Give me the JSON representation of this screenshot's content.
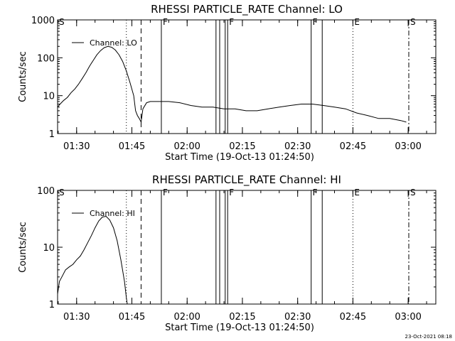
{
  "chart_data": [
    {
      "type": "line",
      "title": "RHESSI PARTICLE_RATE Channel: LO",
      "xlabel": "Start Time (19-Oct-13 01:24:50)",
      "ylabel": "Counts/sec",
      "y_scale": "log",
      "ylim": [
        1,
        1000
      ],
      "xlim": [
        "01:24:50",
        "03:07:30"
      ],
      "x_ticks": [
        "01:30",
        "01:45",
        "02:00",
        "02:15",
        "02:30",
        "02:45",
        "03:00"
      ],
      "y_ticks": [
        "1",
        "10",
        "100",
        "1000"
      ],
      "legend": "top-left",
      "series": [
        {
          "name": "Channel: LO",
          "points": [
            [
              "01:24:50",
              5
            ],
            [
              "01:25:30",
              6
            ],
            [
              "01:26:30",
              7.5
            ],
            [
              "01:27:30",
              9
            ],
            [
              "01:28:30",
              12
            ],
            [
              "01:29:30",
              15
            ],
            [
              "01:30:30",
              20
            ],
            [
              "01:31:30",
              28
            ],
            [
              "01:32:30",
              40
            ],
            [
              "01:33:30",
              60
            ],
            [
              "01:34:30",
              85
            ],
            [
              "01:35:30",
              120
            ],
            [
              "01:36:30",
              155
            ],
            [
              "01:37:30",
              185
            ],
            [
              "01:38:30",
              200
            ],
            [
              "01:39:30",
              190
            ],
            [
              "01:40:30",
              160
            ],
            [
              "01:41:30",
              120
            ],
            [
              "01:42:30",
              80
            ],
            [
              "01:43:30",
              45
            ],
            [
              "01:44:30",
              22
            ],
            [
              "01:45:30",
              10
            ],
            [
              "01:46:00",
              4
            ],
            [
              "01:46:30",
              3
            ],
            [
              "01:47:00",
              2.5
            ],
            [
              "01:47:30",
              2
            ],
            [
              "01:48:00",
              4.5
            ],
            [
              "01:49:00",
              6.5
            ],
            [
              "01:50:00",
              7
            ],
            [
              "01:52:00",
              7
            ],
            [
              "01:55:00",
              7
            ],
            [
              "01:58:00",
              6.5
            ],
            [
              "02:01:00",
              5.5
            ],
            [
              "02:04:00",
              5
            ],
            [
              "02:07:00",
              5
            ],
            [
              "02:10:00",
              4.5
            ],
            [
              "02:13:00",
              4.5
            ],
            [
              "02:16:00",
              4
            ],
            [
              "02:19:00",
              4
            ],
            [
              "02:22:00",
              4.5
            ],
            [
              "02:25:00",
              5
            ],
            [
              "02:28:00",
              5.5
            ],
            [
              "02:31:00",
              6
            ],
            [
              "02:34:00",
              6
            ],
            [
              "02:37:00",
              5.5
            ],
            [
              "02:40:00",
              5
            ],
            [
              "02:43:00",
              4.5
            ],
            [
              "02:46:00",
              3.5
            ],
            [
              "02:49:00",
              3
            ],
            [
              "02:52:00",
              2.5
            ],
            [
              "02:55:00",
              2.5
            ],
            [
              "02:58:00",
              2.2
            ],
            [
              "02:59:30",
              2
            ]
          ]
        }
      ],
      "markers": [
        {
          "label": "S",
          "time": "01:24:50",
          "style": "none"
        },
        {
          "label": "",
          "time": "01:43:30",
          "style": "dotted"
        },
        {
          "label": "",
          "time": "01:47:30",
          "style": "dashed"
        },
        {
          "label": "F",
          "time": "01:53:00",
          "style": "solid"
        },
        {
          "label": "",
          "time": "02:07:50",
          "style": "solid"
        },
        {
          "label": "",
          "time": "02:08:50",
          "style": "solid"
        },
        {
          "label": "",
          "time": "02:10:20",
          "style": "solid"
        },
        {
          "label": "F",
          "time": "02:11:00",
          "style": "solid"
        },
        {
          "label": "F",
          "time": "02:33:40",
          "style": "solid"
        },
        {
          "label": "",
          "time": "02:36:40",
          "style": "solid"
        },
        {
          "label": "E",
          "time": "02:45:00",
          "style": "dotted"
        },
        {
          "label": "S",
          "time": "03:00:10",
          "style": "dashdot"
        }
      ]
    },
    {
      "type": "line",
      "title": "RHESSI PARTICLE_RATE Channel: HI",
      "xlabel": "Start Time (19-Oct-13 01:24:50)",
      "ylabel": "Counts/sec",
      "y_scale": "log",
      "ylim": [
        1,
        100
      ],
      "xlim": [
        "01:24:50",
        "03:07:30"
      ],
      "x_ticks": [
        "01:30",
        "01:45",
        "02:00",
        "02:15",
        "02:30",
        "02:45",
        "03:00"
      ],
      "y_ticks": [
        "1",
        "10",
        "100"
      ],
      "legend": "top-left",
      "series": [
        {
          "name": "Channel: HI",
          "points": [
            [
              "01:24:50",
              1.5
            ],
            [
              "01:25:20",
              2.5
            ],
            [
              "01:26:00",
              3
            ],
            [
              "01:27:00",
              4
            ],
            [
              "01:28:00",
              4.5
            ],
            [
              "01:29:00",
              5
            ],
            [
              "01:30:00",
              6
            ],
            [
              "01:31:00",
              7
            ],
            [
              "01:32:00",
              9
            ],
            [
              "01:33:00",
              12
            ],
            [
              "01:34:00",
              16
            ],
            [
              "01:35:00",
              22
            ],
            [
              "01:36:00",
              29
            ],
            [
              "01:37:00",
              34
            ],
            [
              "01:38:00",
              35
            ],
            [
              "01:39:00",
              30
            ],
            [
              "01:40:00",
              22
            ],
            [
              "01:41:00",
              13
            ],
            [
              "01:42:00",
              6
            ],
            [
              "01:43:00",
              2.5
            ],
            [
              "01:43:30",
              1.3
            ],
            [
              "01:43:45",
              1
            ]
          ]
        }
      ],
      "markers": [
        {
          "label": "S",
          "time": "01:24:50",
          "style": "none"
        },
        {
          "label": "",
          "time": "01:43:30",
          "style": "dotted"
        },
        {
          "label": "",
          "time": "01:47:30",
          "style": "dashed"
        },
        {
          "label": "F",
          "time": "01:53:00",
          "style": "solid"
        },
        {
          "label": "",
          "time": "02:07:50",
          "style": "solid"
        },
        {
          "label": "",
          "time": "02:08:50",
          "style": "solid"
        },
        {
          "label": "",
          "time": "02:10:20",
          "style": "solid"
        },
        {
          "label": "F",
          "time": "02:11:00",
          "style": "solid"
        },
        {
          "label": "F",
          "time": "02:33:40",
          "style": "solid"
        },
        {
          "label": "",
          "time": "02:36:40",
          "style": "solid"
        },
        {
          "label": "E",
          "time": "02:45:00",
          "style": "dotted"
        },
        {
          "label": "S",
          "time": "03:00:10",
          "style": "dashdot"
        }
      ]
    }
  ],
  "footer": {
    "timestamp": "23-Oct-2021 08:18"
  }
}
